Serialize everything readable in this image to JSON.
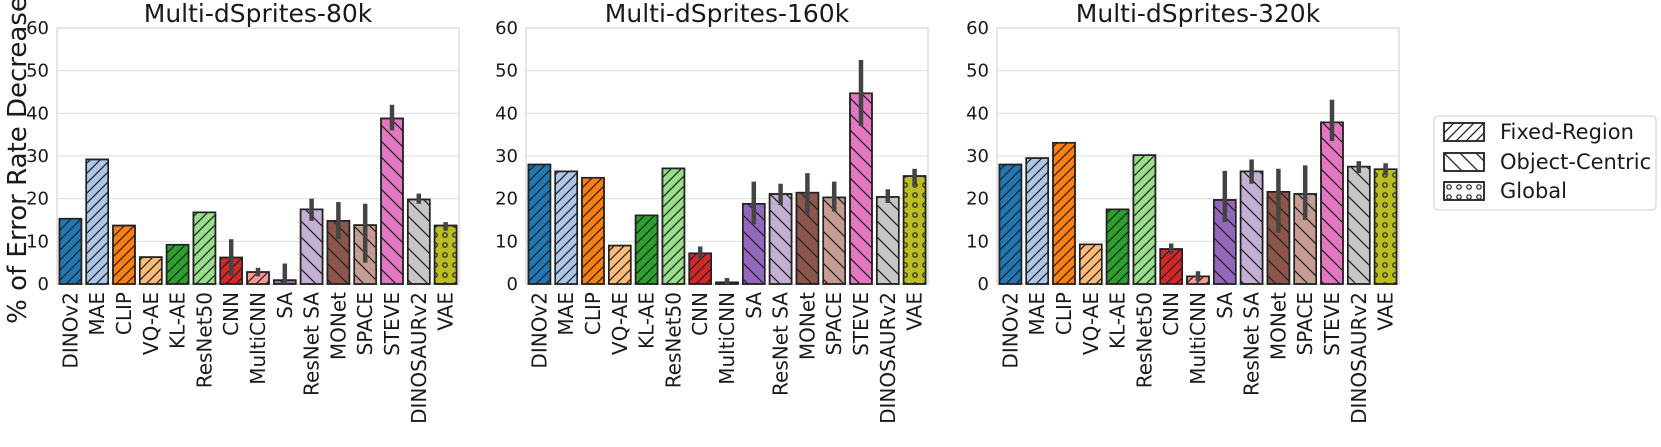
{
  "ylabel": "% of Error Rate Decrease",
  "legend": [
    {
      "label": "Fixed-Region",
      "hatch": "fixed"
    },
    {
      "label": "Object-Centric",
      "hatch": "object"
    },
    {
      "label": "Global",
      "hatch": "global"
    }
  ],
  "models": [
    {
      "name": "DINOv2",
      "color": "#1f77b4",
      "group": "fixed"
    },
    {
      "name": "MAE",
      "color": "#aec7e8",
      "group": "fixed"
    },
    {
      "name": "CLIP",
      "color": "#ff7f0e",
      "group": "fixed"
    },
    {
      "name": "VQ-AE",
      "color": "#ffbb78",
      "group": "fixed"
    },
    {
      "name": "KL-AE",
      "color": "#2ca02c",
      "group": "fixed"
    },
    {
      "name": "ResNet50",
      "color": "#98df8a",
      "group": "fixed"
    },
    {
      "name": "CNN",
      "color": "#d62728",
      "group": "fixed"
    },
    {
      "name": "MultiCNN",
      "color": "#ff9896",
      "group": "fixed"
    },
    {
      "name": "SA",
      "color": "#9467bd",
      "group": "object"
    },
    {
      "name": "ResNet SA",
      "color": "#c5b0d5",
      "group": "object"
    },
    {
      "name": "MONet",
      "color": "#8c564b",
      "group": "object"
    },
    {
      "name": "SPACE",
      "color": "#c49c94",
      "group": "object"
    },
    {
      "name": "STEVE",
      "color": "#e377c2",
      "group": "object"
    },
    {
      "name": "DINOSAURv2",
      "color": "#c7c7c7",
      "group": "object"
    },
    {
      "name": "VAE",
      "color": "#bcbd22",
      "group": "global"
    }
  ],
  "chart_data": [
    {
      "type": "bar",
      "title": "Multi-dSprites-80k",
      "categories": [
        "DINOv2",
        "MAE",
        "CLIP",
        "VQ-AE",
        "KL-AE",
        "ResNet50",
        "CNN",
        "MultiCNN",
        "SA",
        "ResNet SA",
        "MONet",
        "SPACE",
        "STEVE",
        "DINOSAURv2",
        "VAE"
      ],
      "values": [
        15.3,
        29.2,
        13.7,
        6.3,
        9.2,
        16.8,
        6.2,
        2.8,
        0.9,
        17.5,
        14.8,
        13.8,
        38.8,
        19.8,
        13.7
      ],
      "error_low": [
        null,
        null,
        null,
        null,
        null,
        null,
        2.0,
        1.8,
        0.0,
        14.8,
        10.5,
        5.0,
        36.0,
        18.8,
        12.5
      ],
      "error_high": [
        null,
        null,
        null,
        null,
        null,
        null,
        10.5,
        3.8,
        4.8,
        20.0,
        19.2,
        18.8,
        42.0,
        21.2,
        14.5
      ],
      "ylim": [
        0,
        60
      ],
      "yticks": [
        0,
        10,
        20,
        30,
        40,
        50,
        60
      ],
      "ylabel": "% of Error Rate Decrease",
      "grid": true
    },
    {
      "type": "bar",
      "title": "Multi-dSprites-160k",
      "categories": [
        "DINOv2",
        "MAE",
        "CLIP",
        "VQ-AE",
        "KL-AE",
        "ResNet50",
        "CNN",
        "MultiCNN",
        "SA",
        "ResNet SA",
        "MONet",
        "SPACE",
        "STEVE",
        "DINOSAURv2",
        "VAE"
      ],
      "values": [
        28.0,
        26.4,
        24.9,
        9.0,
        16.1,
        27.1,
        7.2,
        0.4,
        18.8,
        21.1,
        21.4,
        20.3,
        44.7,
        20.4,
        25.3
      ],
      "error_low": [
        null,
        null,
        null,
        null,
        null,
        null,
        6.0,
        0.0,
        14.0,
        18.5,
        16.0,
        17.0,
        37.0,
        19.0,
        23.0
      ],
      "error_high": [
        null,
        null,
        null,
        null,
        null,
        null,
        8.8,
        1.4,
        24.0,
        23.5,
        26.0,
        24.0,
        52.5,
        22.2,
        27.0
      ],
      "ylim": [
        0,
        60
      ],
      "yticks": [
        0,
        10,
        20,
        30,
        40,
        50,
        60
      ],
      "grid": true
    },
    {
      "type": "bar",
      "title": "Multi-dSprites-320k",
      "categories": [
        "DINOv2",
        "MAE",
        "CLIP",
        "VQ-AE",
        "KL-AE",
        "ResNet50",
        "CNN",
        "MultiCNN",
        "SA",
        "ResNet SA",
        "MONet",
        "SPACE",
        "STEVE",
        "DINOSAURv2",
        "VAE"
      ],
      "values": [
        28.0,
        29.5,
        33.1,
        9.3,
        17.5,
        30.2,
        8.2,
        1.8,
        19.7,
        26.4,
        21.6,
        21.1,
        37.9,
        27.5,
        26.9
      ],
      "error_low": [
        null,
        null,
        null,
        null,
        null,
        null,
        7.0,
        0.6,
        14.5,
        23.5,
        12.0,
        15.0,
        33.5,
        26.0,
        25.5
      ],
      "error_high": [
        null,
        null,
        null,
        null,
        null,
        null,
        9.5,
        3.0,
        26.5,
        29.2,
        27.0,
        27.8,
        43.2,
        28.8,
        28.3
      ],
      "ylim": [
        0,
        60
      ],
      "yticks": [
        0,
        10,
        20,
        30,
        40,
        50,
        60
      ],
      "grid": true
    }
  ]
}
